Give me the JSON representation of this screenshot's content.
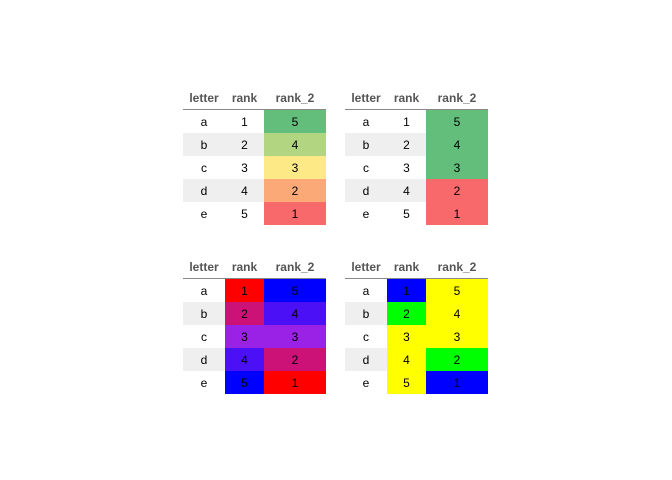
{
  "columns": [
    "letter",
    "rank",
    "rank_2"
  ],
  "tables": [
    {
      "rows": [
        {
          "letter": "a",
          "rank": "1",
          "rank_2": "5"
        },
        {
          "letter": "b",
          "rank": "2",
          "rank_2": "4"
        },
        {
          "letter": "c",
          "rank": "3",
          "rank_2": "3"
        },
        {
          "letter": "d",
          "rank": "4",
          "rank_2": "2"
        },
        {
          "letter": "e",
          "rank": "5",
          "rank_2": "1"
        }
      ],
      "colors": {
        "rank": [
          null,
          null,
          null,
          null,
          null
        ],
        "rank_2": [
          "#63be7b",
          "#b1d580",
          "#fde985",
          "#fba977",
          "#f8696b"
        ]
      }
    },
    {
      "rows": [
        {
          "letter": "a",
          "rank": "1",
          "rank_2": "5"
        },
        {
          "letter": "b",
          "rank": "2",
          "rank_2": "4"
        },
        {
          "letter": "c",
          "rank": "3",
          "rank_2": "3"
        },
        {
          "letter": "d",
          "rank": "4",
          "rank_2": "2"
        },
        {
          "letter": "e",
          "rank": "5",
          "rank_2": "1"
        }
      ],
      "colors": {
        "rank": [
          null,
          null,
          null,
          null,
          null
        ],
        "rank_2": [
          "#63be7b",
          "#63be7b",
          "#63be7b",
          "#f8696b",
          "#f8696b"
        ]
      }
    },
    {
      "rows": [
        {
          "letter": "a",
          "rank": "1",
          "rank_2": "5"
        },
        {
          "letter": "b",
          "rank": "2",
          "rank_2": "4"
        },
        {
          "letter": "c",
          "rank": "3",
          "rank_2": "3"
        },
        {
          "letter": "d",
          "rank": "4",
          "rank_2": "2"
        },
        {
          "letter": "e",
          "rank": "5",
          "rank_2": "1"
        }
      ],
      "colors": {
        "rank": [
          "#ff0000",
          "#cc1177",
          "#9a22e6",
          "#4b10f5",
          "#0000ff"
        ],
        "rank_2": [
          "#0000ff",
          "#4b10f5",
          "#9a22e6",
          "#cc1177",
          "#ff0000"
        ]
      }
    },
    {
      "rows": [
        {
          "letter": "a",
          "rank": "1",
          "rank_2": "5"
        },
        {
          "letter": "b",
          "rank": "2",
          "rank_2": "4"
        },
        {
          "letter": "c",
          "rank": "3",
          "rank_2": "3"
        },
        {
          "letter": "d",
          "rank": "4",
          "rank_2": "2"
        },
        {
          "letter": "e",
          "rank": "5",
          "rank_2": "1"
        }
      ],
      "colors": {
        "rank": [
          "#0000ff",
          "#00ff00",
          "#ffff00",
          "#ffff00",
          "#ffff00"
        ],
        "rank_2": [
          "#ffff00",
          "#ffff00",
          "#ffff00",
          "#00ff00",
          "#0000ff"
        ]
      }
    }
  ]
}
